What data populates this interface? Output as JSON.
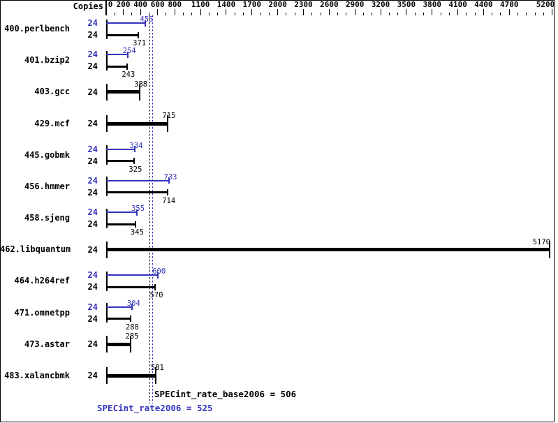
{
  "header": {
    "copies_label": "Copies"
  },
  "colors": {
    "base": "#000000",
    "peak": "#3434bb",
    "background": "#ffffff"
  },
  "chart_data": {
    "type": "bar",
    "orientation": "horizontal",
    "title": "",
    "xlabel": "",
    "ylabel": "Copies",
    "xlim": [
      0,
      5300
    ],
    "grid": false,
    "axis": {
      "major_tick_labels": [
        0,
        200,
        400,
        600,
        800,
        1100,
        1400,
        1700,
        2000,
        2300,
        2600,
        2900,
        3200,
        3500,
        3800,
        4100,
        4400,
        4700,
        5200
      ],
      "minor_tick_step": 100
    },
    "series_legend": {
      "peak": "SPECint_rate2006 (blue)",
      "base": "SPECint_rate_base2006 (black)"
    },
    "benchmarks": [
      {
        "name": "400.perlbench",
        "copies": 24,
        "peak": 455,
        "base": 371
      },
      {
        "name": "401.bzip2",
        "copies": 24,
        "peak": 254,
        "base": 243
      },
      {
        "name": "403.gcc",
        "copies": 24,
        "peak": null,
        "base": 388
      },
      {
        "name": "429.mcf",
        "copies": 24,
        "peak": null,
        "base": 715
      },
      {
        "name": "445.gobmk",
        "copies": 24,
        "peak": 334,
        "base": 325
      },
      {
        "name": "456.hmmer",
        "copies": 24,
        "peak": 733,
        "base": 714
      },
      {
        "name": "458.sjeng",
        "copies": 24,
        "peak": 355,
        "base": 345
      },
      {
        "name": "462.libquantum",
        "copies": 24,
        "peak": null,
        "base": 5170
      },
      {
        "name": "464.h264ref",
        "copies": 24,
        "peak": 600,
        "base": 570
      },
      {
        "name": "471.omnetpp",
        "copies": 24,
        "peak": 304,
        "base": 288
      },
      {
        "name": "473.astar",
        "copies": 24,
        "peak": null,
        "base": 285
      },
      {
        "name": "483.xalancbmk",
        "copies": 24,
        "peak": null,
        "base": 581
      }
    ],
    "medians": {
      "base": {
        "label": "SPECint_rate_base2006 = 506",
        "value": 506
      },
      "peak": {
        "label": "SPECint_rate2006 = 525",
        "value": 525
      }
    }
  }
}
